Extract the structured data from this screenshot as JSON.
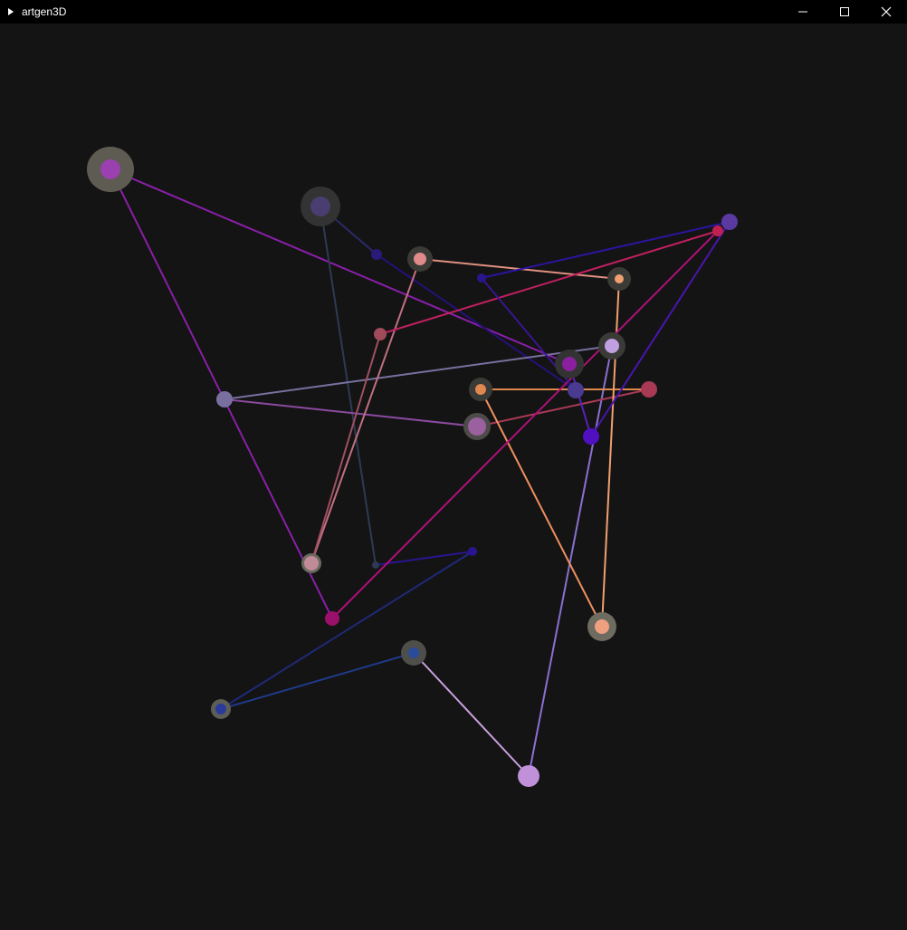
{
  "window": {
    "title": "artgen3D"
  },
  "colors": {
    "titlebar": "#000000",
    "canvas": "#141414",
    "title_text": "#ffffff"
  },
  "icons": {
    "app": "play-triangle-icon",
    "minimize": "minimize-icon",
    "maximize": "maximize-icon",
    "close": "close-icon"
  }
}
